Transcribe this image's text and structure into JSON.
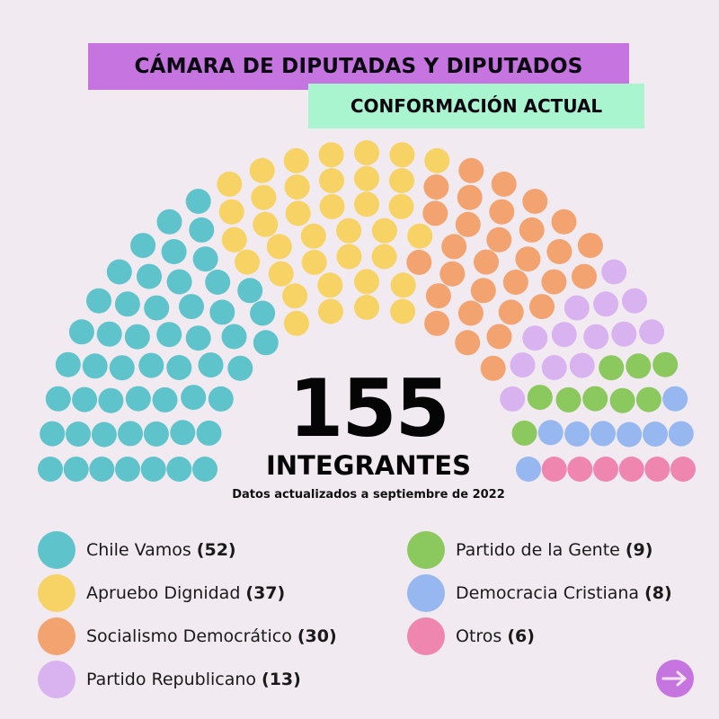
{
  "header": {
    "title": "CÁMARA DE DIPUTADAS Y DIPUTADOS",
    "subtitle": "CONFORMACIÓN ACTUAL",
    "title_bg": "#c574e0",
    "subtitle_bg": "#a9f5d0"
  },
  "center": {
    "total": "155",
    "total_label": "INTEGRANTES",
    "updated_note": "Datos actualizados a septiembre de 2022"
  },
  "legend": {
    "left": [
      {
        "label": "Chile Vamos",
        "count": "(52)",
        "color": "#5ec3ca"
      },
      {
        "label": "Apruebo Dignidad",
        "count": "(37)",
        "color": "#f7d264"
      },
      {
        "label": "Socialismo Democrático",
        "count": "(30)",
        "color": "#f2a36f"
      },
      {
        "label": "Partido Republicano",
        "count": "(13)",
        "color": "#d9b3f0"
      }
    ],
    "right": [
      {
        "label": "Partido de la Gente",
        "count": "(9)",
        "color": "#8bc85d"
      },
      {
        "label": "Democracia Cristiana",
        "count": "(8)",
        "color": "#97b7f0"
      },
      {
        "label": "Otros",
        "count": "(6)",
        "color": "#ee86b0"
      }
    ]
  },
  "nav": {
    "next_icon": "arrow-right-icon",
    "color": "#c574e0"
  },
  "chart_data": {
    "type": "parliament",
    "title": "CÁMARA DE DIPUTADAS Y DIPUTADOS — CONFORMACIÓN ACTUAL",
    "total_seats": 155,
    "note": "Datos actualizados a septiembre de 2022",
    "series": [
      {
        "name": "Chile Vamos",
        "seats": 52,
        "color": "#5ec3ca"
      },
      {
        "name": "Apruebo Dignidad",
        "seats": 37,
        "color": "#f7d264"
      },
      {
        "name": "Socialismo Democrático",
        "seats": 30,
        "color": "#f2a36f"
      },
      {
        "name": "Partido Republicano",
        "seats": 13,
        "color": "#d9b3f0"
      },
      {
        "name": "Partido de la Gente",
        "seats": 9,
        "color": "#8bc85d"
      },
      {
        "name": "Democracia Cristiana",
        "seats": 8,
        "color": "#97b7f0"
      },
      {
        "name": "Otros",
        "seats": 6,
        "color": "#ee86b0"
      }
    ],
    "layout": {
      "rows": 7,
      "legend_position": "bottom"
    }
  }
}
